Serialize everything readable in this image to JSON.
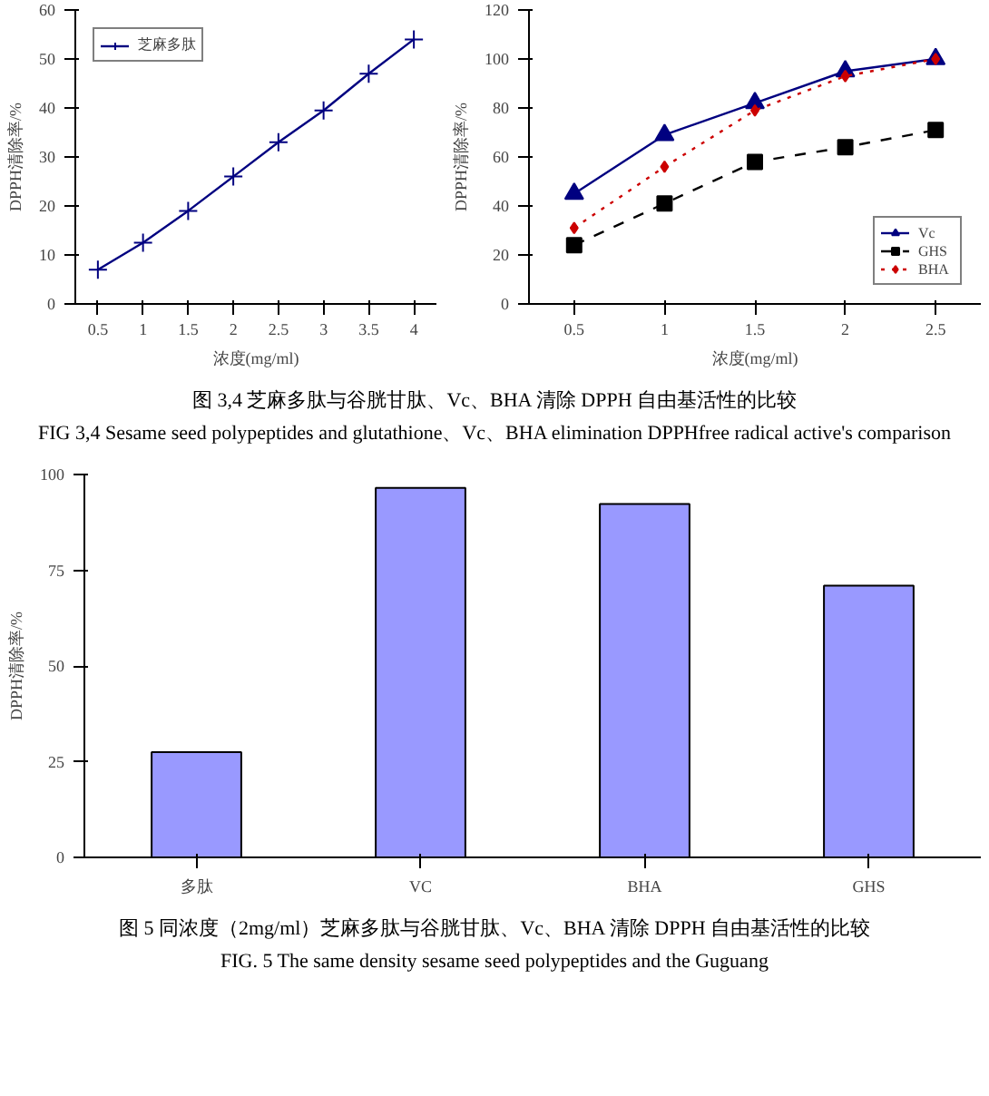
{
  "chart_data": [
    {
      "type": "line",
      "xlabel": "浓度(mg/ml)",
      "ylabel": "DPPH清除率/%",
      "categories": [
        "0.5",
        "1",
        "1.5",
        "2",
        "2.5",
        "3",
        "3.5",
        "4"
      ],
      "series": [
        {
          "name": "芝麻多肽",
          "color": "#000080",
          "values": [
            7,
            12.5,
            19,
            26,
            33,
            39.5,
            47,
            54
          ],
          "marker": "cross",
          "line_style": "solid"
        }
      ],
      "ylim": [
        0,
        60
      ],
      "yticks": [
        0,
        10,
        20,
        30,
        40,
        50,
        60
      ],
      "grid": false,
      "legend": "top left"
    },
    {
      "type": "line",
      "xlabel": "浓度(mg/ml)",
      "ylabel": "DPPH清除率/%",
      "categories": [
        "0.5",
        "1",
        "1.5",
        "2",
        "2.5"
      ],
      "series": [
        {
          "name": "Vc",
          "color": "#000080",
          "values": [
            45,
            69,
            82,
            95,
            100
          ],
          "marker": "triangle",
          "line_style": "solid"
        },
        {
          "name": "GHS",
          "color": "#000000",
          "values": [
            24,
            41,
            58,
            64,
            71
          ],
          "marker": "square",
          "line_style": "dashed"
        },
        {
          "name": "BHA",
          "color": "#cc0000",
          "values": [
            31,
            56,
            79,
            93,
            100
          ],
          "marker": "diamond",
          "line_style": "dotted"
        }
      ],
      "ylim": [
        0,
        120
      ],
      "yticks": [
        0,
        20,
        40,
        60,
        80,
        100,
        120
      ],
      "grid": false,
      "legend": "bottom right",
      "annotations": [
        "图 3,4    芝麻多肽与谷胱甘肽、Vc、BHA 清除 DPPH 自由基活性的比较",
        "FIG 3,4    Sesame seed polypeptides and glutathione、Vc、BHA elimination DPPHfree radical active's comparison"
      ]
    },
    {
      "type": "bar",
      "ylabel": "DPPH清除率/%",
      "categories": [
        "多肽",
        "VC",
        "BHA",
        "GHS"
      ],
      "values": [
        27.5,
        96.5,
        92.3,
        71
      ],
      "color": "#9999ff",
      "ylim": [
        0,
        100
      ],
      "yticks": [
        0,
        25,
        50,
        75,
        100
      ],
      "grid": false,
      "legend": false,
      "annotations": [
        "图 5   同浓度（2mg/ml）芝麻多肽与谷胱甘肽、Vc、BHA 清除 DPPH 自由基活性的比较",
        "FIG. 5    The same density sesame seed polypeptides and the Guguang"
      ]
    }
  ]
}
